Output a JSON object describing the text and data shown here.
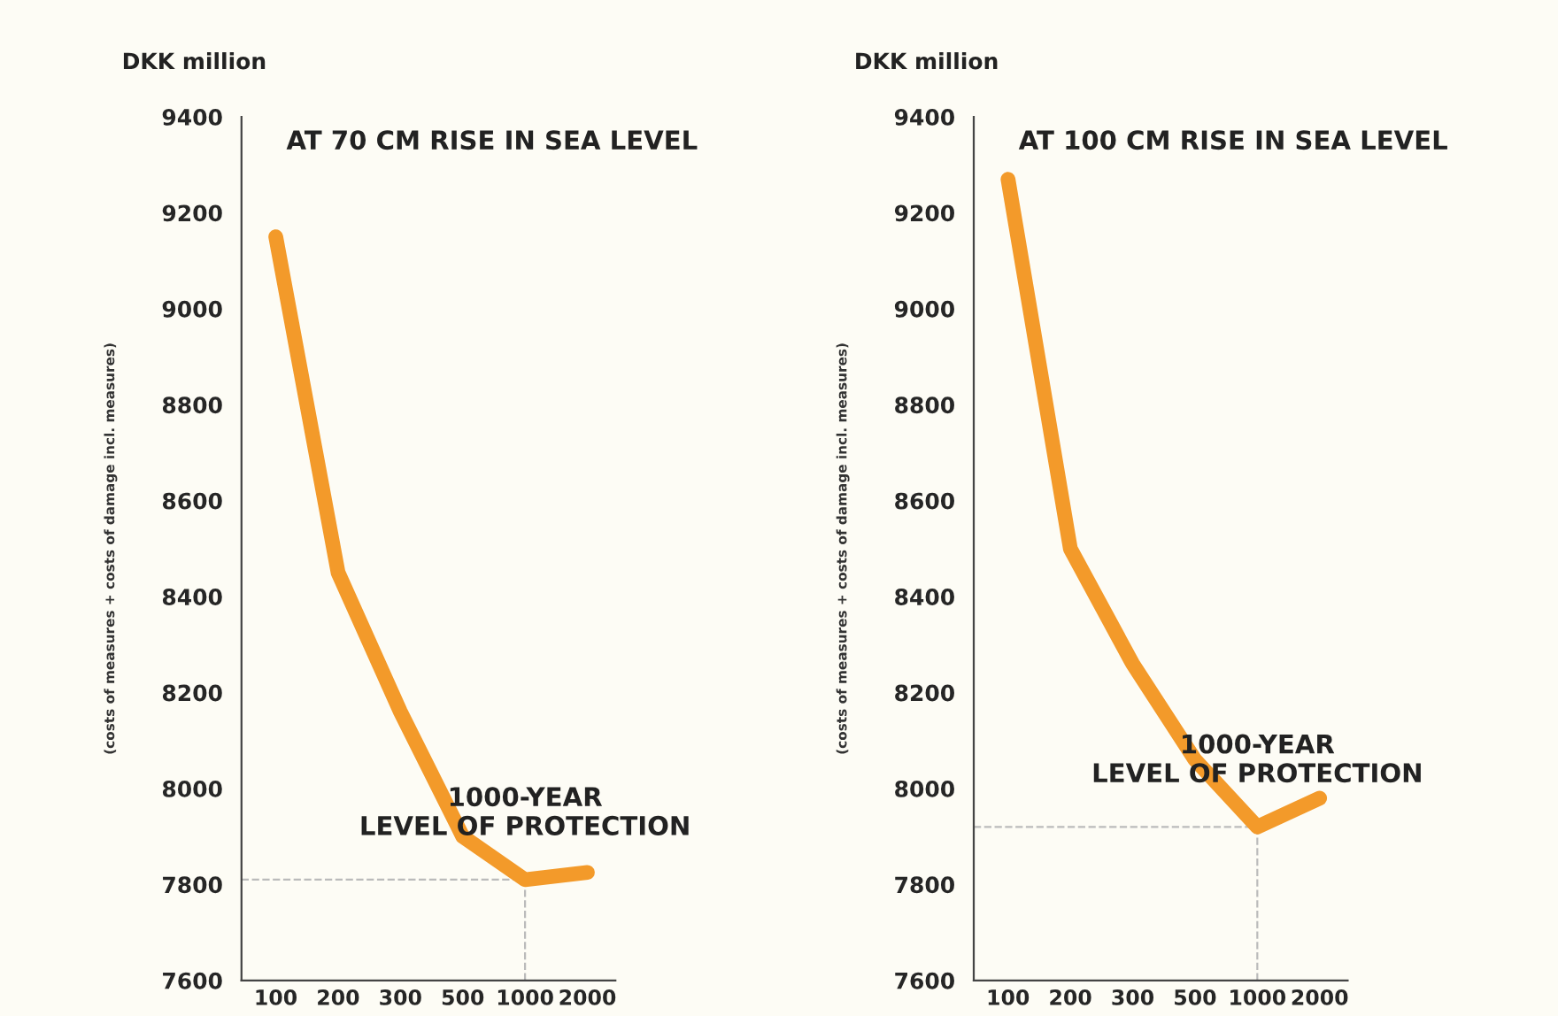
{
  "chart_data": [
    {
      "type": "line",
      "title": "AT 70 CM RISE IN SEA LEVEL",
      "subtitle": "DKK million",
      "ylabel": "(costs of measures + costs of damage incl. measures)",
      "categories": [
        "100",
        "200",
        "300",
        "500",
        "1000",
        "2000"
      ],
      "series": [
        {
          "color": "#f39a2a",
          "values": [
            9150,
            8450,
            8160,
            7900,
            7810,
            7825
          ]
        }
      ],
      "ylim": [
        7600,
        9400
      ],
      "yticks": [
        7600,
        7800,
        8000,
        8200,
        8400,
        8600,
        8800,
        9000,
        9200,
        9400
      ],
      "ref_lines": [
        {
          "axis": "y",
          "value": 7810,
          "color": "#bbbbbb",
          "line_style": "dashed"
        },
        {
          "axis": "x",
          "value": "1000",
          "color": "#bbbbbb",
          "line_style": "dashed"
        }
      ],
      "annotations": [
        {
          "text": "1000-YEAR\nLEVEL OF PROTECTION",
          "x": "1000",
          "y": 7810
        }
      ],
      "grid": false,
      "legend": false,
      "marker": "none",
      "line_style": "solid"
    },
    {
      "type": "line",
      "title": "AT 100 CM RISE IN SEA LEVEL",
      "subtitle": "DKK million",
      "ylabel": "(costs of measures + costs of damage incl. measures)",
      "categories": [
        "100",
        "200",
        "300",
        "500",
        "1000",
        "2000"
      ],
      "series": [
        {
          "color": "#f39a2a",
          "values": [
            9270,
            8500,
            8260,
            8060,
            7920,
            7980
          ]
        }
      ],
      "ylim": [
        7600,
        9400
      ],
      "yticks": [
        7600,
        7800,
        8000,
        8200,
        8400,
        8600,
        8800,
        9000,
        9200,
        9400
      ],
      "ref_lines": [
        {
          "axis": "y",
          "value": 7920,
          "color": "#bbbbbb",
          "line_style": "dashed"
        },
        {
          "axis": "x",
          "value": "1000",
          "color": "#bbbbbb",
          "line_style": "dashed"
        }
      ],
      "annotations": [
        {
          "text": "1000-YEAR\nLEVEL OF PROTECTION",
          "x": "1000",
          "y": 7920
        }
      ],
      "grid": false,
      "legend": false,
      "marker": "none",
      "line_style": "solid"
    }
  ]
}
